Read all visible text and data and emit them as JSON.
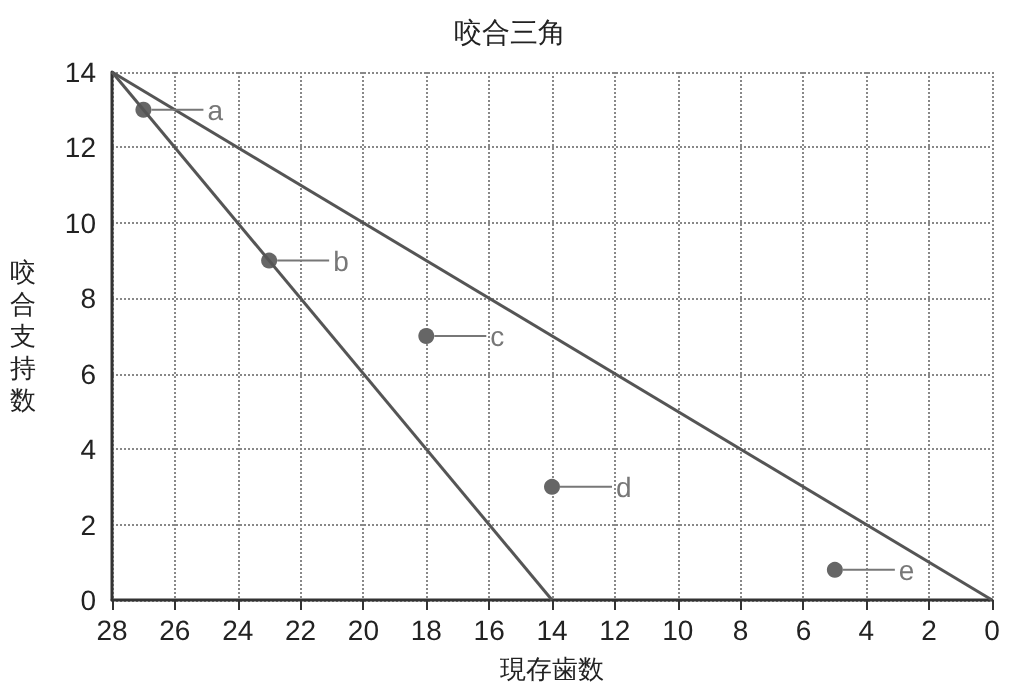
{
  "chart_data": {
    "type": "scatter",
    "title": "咬合三角",
    "xlabel": "現存歯数",
    "ylabel": "咬合支持数",
    "xlim": [
      28,
      0
    ],
    "xticks": [
      28,
      26,
      24,
      22,
      20,
      18,
      16,
      14,
      12,
      10,
      8,
      6,
      4,
      2,
      0
    ],
    "ylim": [
      0,
      14
    ],
    "yticks": [
      0,
      2,
      4,
      6,
      8,
      10,
      12,
      14
    ],
    "grid": true,
    "series": [
      {
        "type": "line",
        "x": [
          28,
          0
        ],
        "values": [
          14,
          0
        ],
        "color": "#555555"
      },
      {
        "type": "line",
        "x": [
          28,
          14
        ],
        "values": [
          14,
          0
        ],
        "color": "#555555"
      },
      {
        "x": [
          27,
          23,
          18,
          14,
          5
        ],
        "values": [
          13,
          9,
          7,
          3,
          0.8
        ],
        "color": "#666666",
        "marker": "circle"
      }
    ],
    "annotations": [
      {
        "text": "a",
        "x": 27,
        "y": 13
      },
      {
        "text": "b",
        "x": 23,
        "y": 9
      },
      {
        "text": "c",
        "x": 18,
        "y": 7
      },
      {
        "text": "d",
        "x": 14,
        "y": 3
      },
      {
        "text": "e",
        "x": 5,
        "y": 0.8
      }
    ]
  }
}
